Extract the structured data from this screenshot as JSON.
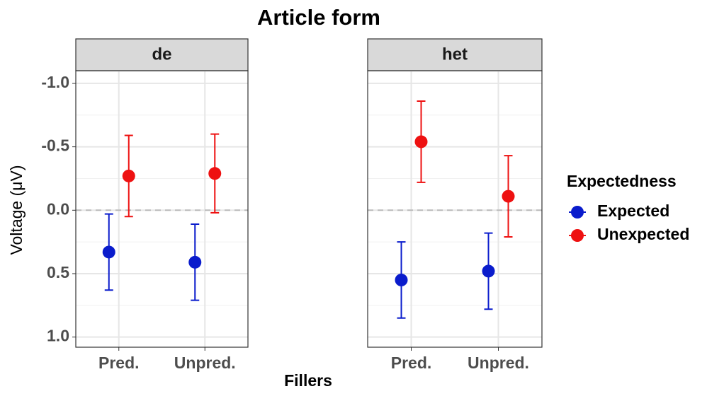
{
  "chart_data": {
    "type": "errorbar",
    "title": "Article form",
    "x_label": "Fillers",
    "y_label": "Voltage (μV)",
    "facets": [
      "de",
      "het"
    ],
    "categories": [
      "Pred.",
      "Unpred."
    ],
    "ylim": [
      -1.1,
      1.08
    ],
    "y_reversed": true,
    "yticks": [
      {
        "value": -1,
        "label": "-1.0"
      },
      {
        "value": -0.5,
        "label": "-0.5"
      },
      {
        "value": 0,
        "label": "0.0"
      },
      {
        "value": 0.5,
        "label": "0.5"
      },
      {
        "value": 1,
        "label": "1.0"
      }
    ],
    "grid": true,
    "reference_line": 0,
    "legend_title": "Expectedness",
    "legend_position": "right",
    "series": [
      {
        "name": "Expected",
        "color": "#0a1ccc",
        "values": [
          [
            0.33,
            0.41
          ],
          [
            0.55,
            0.48
          ]
        ],
        "errors": [
          [
            0.3,
            0.3
          ],
          [
            0.3,
            0.3
          ]
        ]
      },
      {
        "name": "Unexpected",
        "color": "#ee1111",
        "values": [
          [
            -0.27,
            -0.29
          ],
          [
            -0.54,
            -0.11
          ]
        ],
        "errors": [
          [
            0.32,
            0.31
          ],
          [
            0.32,
            0.32
          ]
        ]
      }
    ]
  }
}
